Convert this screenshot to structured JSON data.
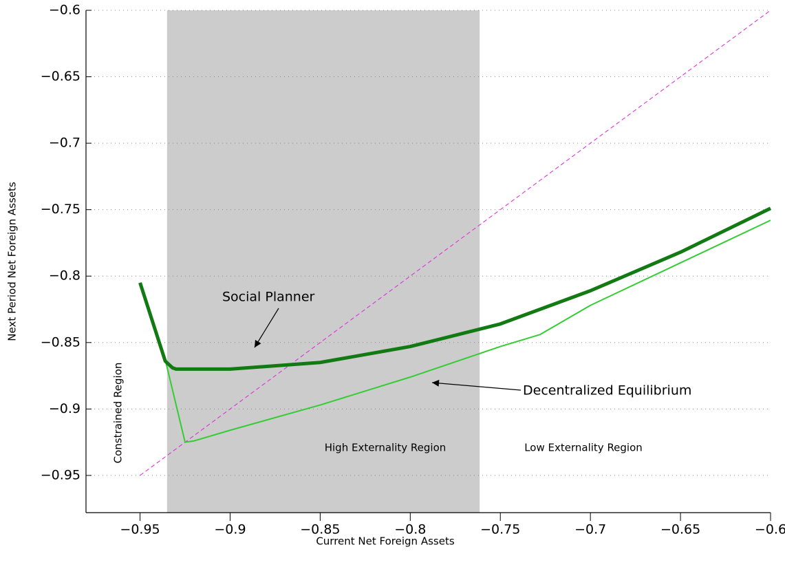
{
  "chart_data": {
    "type": "line",
    "x_label": "Current Net Foreign Assets",
    "y_label": "Next Period Net Foreign Assets",
    "xlim": [
      -0.98,
      -0.6
    ],
    "ylim": [
      -0.978,
      -0.6
    ],
    "xticks": [
      {
        "value": -0.95,
        "label": "−0.95"
      },
      {
        "value": -0.9,
        "label": "−0.9"
      },
      {
        "value": -0.85,
        "label": "−0.85"
      },
      {
        "value": -0.8,
        "label": "−0.8"
      },
      {
        "value": -0.75,
        "label": "−0.75"
      },
      {
        "value": -0.7,
        "label": "−0.7"
      },
      {
        "value": -0.65,
        "label": "−0.65"
      },
      {
        "value": -0.6,
        "label": "−0.6"
      }
    ],
    "yticks": [
      {
        "value": -0.95,
        "label": "−0.95"
      },
      {
        "value": -0.9,
        "label": "−0.9"
      },
      {
        "value": -0.85,
        "label": "−0.85"
      },
      {
        "value": -0.8,
        "label": "−0.8"
      },
      {
        "value": -0.75,
        "label": "−0.75"
      },
      {
        "value": -0.7,
        "label": "−0.7"
      },
      {
        "value": -0.65,
        "label": "−0.65"
      },
      {
        "value": -0.6,
        "label": "−0.6"
      }
    ],
    "grid": true,
    "shaded_region": [
      -0.935,
      -0.7615
    ],
    "shaded_color": "#cccccc",
    "series": [
      {
        "name": "Social Planner",
        "color": "#127a12",
        "width": 5,
        "x": [
          -0.95,
          -0.936,
          -0.932,
          -0.93,
          -0.9,
          -0.85,
          -0.8,
          -0.75,
          -0.7,
          -0.65,
          -0.6
        ],
        "values": [
          -0.805,
          -0.864,
          -0.869,
          -0.87,
          -0.87,
          -0.865,
          -0.853,
          -0.836,
          -0.811,
          -0.782,
          -0.749
        ]
      },
      {
        "name": "Decentralized Equilibrium",
        "color": "#33cc33",
        "width": 2,
        "x": [
          -0.95,
          -0.936,
          -0.925,
          -0.92,
          -0.9,
          -0.85,
          -0.8,
          -0.75,
          -0.728,
          -0.7,
          -0.65,
          -0.6
        ],
        "values": [
          -0.805,
          -0.863,
          -0.925,
          -0.924,
          -0.916,
          -0.897,
          -0.876,
          -0.853,
          -0.844,
          -0.822,
          -0.79,
          -0.758
        ]
      },
      {
        "color": "#dd22dd",
        "width": 1,
        "dash": true,
        "x": [
          -0.95,
          -0.6
        ],
        "values": [
          -0.95,
          -0.6
        ]
      }
    ],
    "annotations": [
      "Constrained Region",
      "High Externality Region",
      "Low Externality Region"
    ]
  }
}
